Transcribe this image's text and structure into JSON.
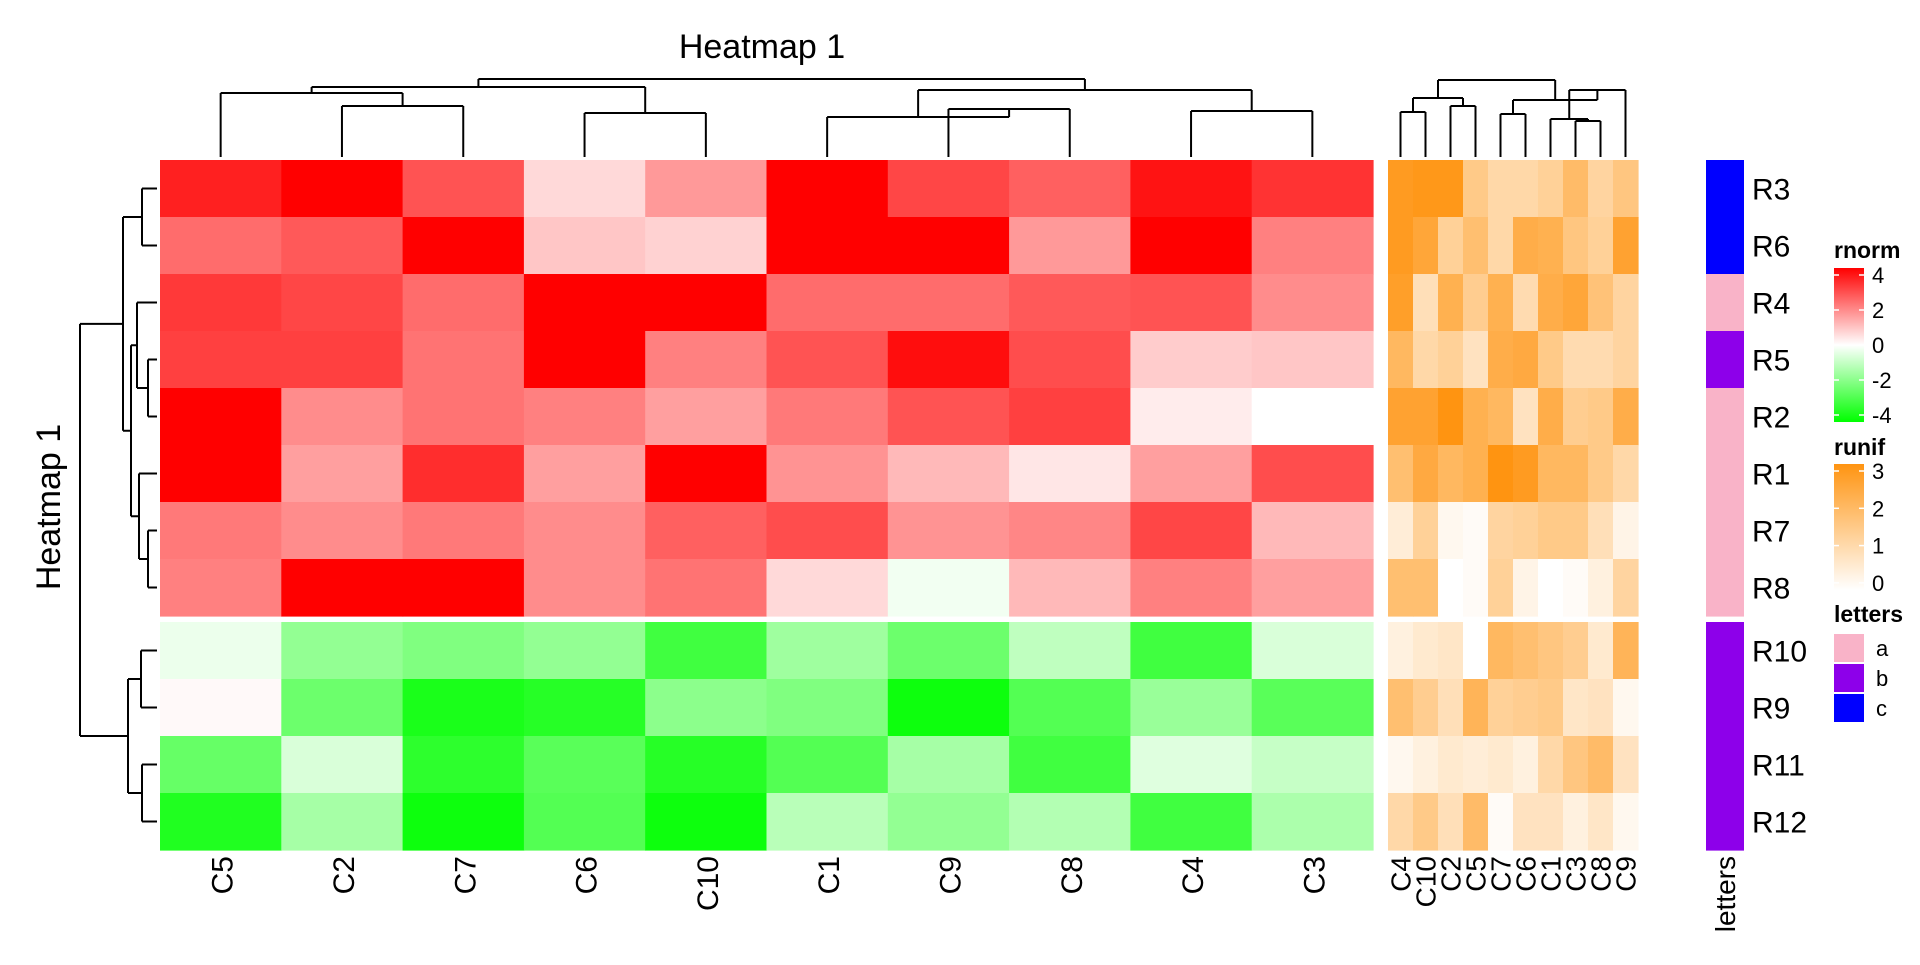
{
  "chart_data": {
    "type": "heatmap",
    "title": "Heatmap 1",
    "row_title": "Heatmap 1",
    "rows": [
      "R3",
      "R6",
      "R4",
      "R5",
      "R2",
      "R1",
      "R7",
      "R8",
      "R10",
      "R9",
      "R11",
      "R12"
    ],
    "rnorm": {
      "columns": [
        "C5",
        "C2",
        "C7",
        "C6",
        "C10",
        "C1",
        "C9",
        "C8",
        "C4",
        "C3"
      ],
      "values": [
        [
          3.5,
          4.0,
          2.7,
          0.6,
          1.6,
          4.0,
          2.9,
          2.5,
          3.7,
          3.2
        ],
        [
          2.3,
          2.6,
          4.0,
          0.9,
          0.7,
          4.0,
          4.0,
          1.6,
          4.0,
          2.0
        ],
        [
          3.1,
          2.9,
          2.3,
          4.0,
          4.0,
          2.3,
          2.3,
          2.6,
          2.7,
          1.8
        ],
        [
          3.0,
          3.0,
          2.2,
          4.0,
          2.0,
          2.7,
          3.8,
          2.8,
          0.8,
          0.9
        ],
        [
          4.0,
          1.8,
          2.2,
          2.0,
          1.5,
          2.1,
          2.7,
          3.0,
          0.3,
          0.0
        ],
        [
          4.0,
          1.5,
          3.3,
          1.5,
          4.0,
          1.7,
          1.1,
          0.4,
          1.5,
          2.8
        ],
        [
          2.1,
          1.8,
          2.1,
          1.8,
          2.5,
          2.8,
          1.7,
          1.9,
          2.9,
          1.1
        ],
        [
          2.0,
          4.0,
          4.0,
          1.8,
          2.2,
          0.6,
          -0.2,
          1.1,
          2.0,
          1.5
        ],
        [
          -0.3,
          -1.7,
          -2.0,
          -1.7,
          -3.0,
          -1.5,
          -2.3,
          -1.0,
          -3.0,
          -0.6
        ],
        [
          0.1,
          -2.3,
          -3.6,
          -3.4,
          -1.8,
          -2.0,
          -3.8,
          -2.7,
          -1.6,
          -2.6
        ],
        [
          -2.4,
          -0.6,
          -3.3,
          -2.6,
          -3.4,
          -2.7,
          -1.4,
          -3.0,
          -0.5,
          -0.9
        ],
        [
          -3.5,
          -1.4,
          -3.8,
          -2.7,
          -3.8,
          -1.1,
          -1.7,
          -1.2,
          -3.0,
          -1.3
        ]
      ]
    },
    "runif": {
      "columns": [
        "C4",
        "C10",
        "C2",
        "C5",
        "C7",
        "C6",
        "C1",
        "C3",
        "C8",
        "C9"
      ],
      "values": [
        [
          2.8,
          2.9,
          2.9,
          1.5,
          1.1,
          1.1,
          1.3,
          1.9,
          1.2,
          1.6
        ],
        [
          2.8,
          2.5,
          1.3,
          1.8,
          1.1,
          2.3,
          2.2,
          1.6,
          1.3,
          2.6
        ],
        [
          2.7,
          0.9,
          2.2,
          1.4,
          2.2,
          1.0,
          2.3,
          2.5,
          1.7,
          1.2
        ],
        [
          2.0,
          1.1,
          1.3,
          0.8,
          2.3,
          2.4,
          1.5,
          1.0,
          1.0,
          1.2
        ],
        [
          2.6,
          2.6,
          3.0,
          2.2,
          2.0,
          0.8,
          2.3,
          1.4,
          1.5,
          2.3
        ],
        [
          1.8,
          2.4,
          2.0,
          2.2,
          3.0,
          2.8,
          2.0,
          2.0,
          1.5,
          1.1
        ],
        [
          0.5,
          1.3,
          0.2,
          0.1,
          1.2,
          1.3,
          1.5,
          1.5,
          0.9,
          0.3
        ],
        [
          1.8,
          1.8,
          0.0,
          0.1,
          1.3,
          0.3,
          0.0,
          0.1,
          0.4,
          1.2
        ],
        [
          0.4,
          0.6,
          0.7,
          0.0,
          2.0,
          1.8,
          1.6,
          1.4,
          0.6,
          2.1
        ],
        [
          1.8,
          1.4,
          0.9,
          2.1,
          1.3,
          1.4,
          1.5,
          0.7,
          0.8,
          0.2
        ],
        [
          0.2,
          0.4,
          0.6,
          0.5,
          0.6,
          0.4,
          1.1,
          1.6,
          1.9,
          0.8
        ],
        [
          1.1,
          1.5,
          0.9,
          1.9,
          0.1,
          0.8,
          0.8,
          0.4,
          0.7,
          0.2
        ]
      ]
    },
    "letters": {
      "title": "letters",
      "values": [
        "c",
        "c",
        "a",
        "b",
        "a",
        "a",
        "a",
        "a",
        "b",
        "b",
        "b",
        "b"
      ]
    },
    "legends": {
      "rnorm": {
        "title": "rnorm",
        "ticks": [
          "4",
          "2",
          "0",
          "-2",
          "-4"
        ],
        "range": [
          -4,
          4
        ],
        "colors": [
          "#00ff00",
          "#ffffff",
          "#ff0000"
        ]
      },
      "runif": {
        "title": "runif",
        "ticks": [
          "3",
          "2",
          "1",
          "0"
        ],
        "range": [
          0,
          3
        ],
        "colors": [
          "#ffffff",
          "#ff9411"
        ]
      },
      "letters": {
        "title": "letters",
        "items": [
          {
            "label": "a",
            "color": "#f9b3c8"
          },
          {
            "label": "b",
            "color": "#8d00ea"
          },
          {
            "label": "c",
            "color": "#0000ff"
          }
        ]
      }
    },
    "row_splits": 2,
    "column_splits": 2,
    "legend_placement": "right"
  }
}
